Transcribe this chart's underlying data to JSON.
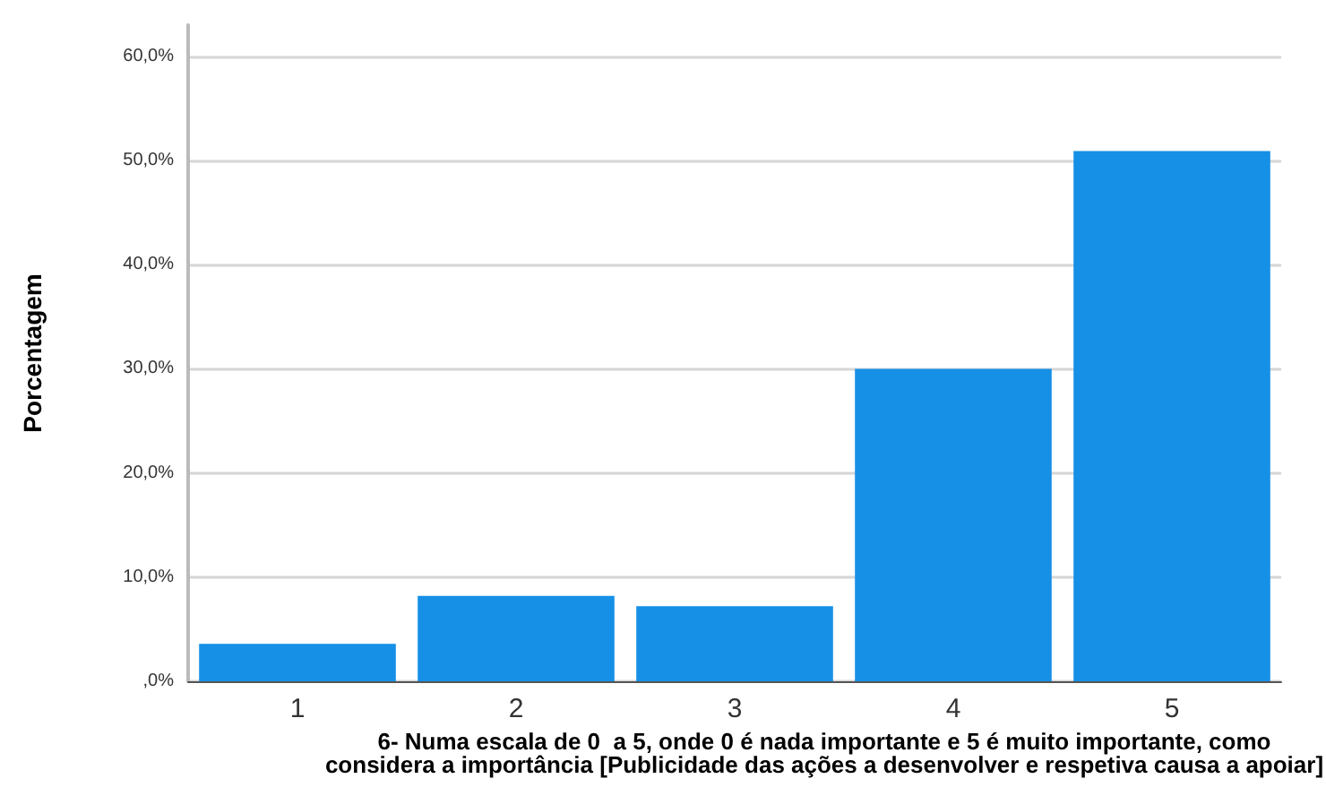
{
  "chart_data": {
    "type": "bar",
    "xlabel": "6- Numa escala de 0  a 5, onde 0 é nada importante e 5 é muito importante, como considera a importância [Publicidade das ações a desenvolver e respetiva causa a apoiar]",
    "ylabel": "Porcentagem",
    "categories": [
      "1",
      "2",
      "3",
      "4",
      "5"
    ],
    "values": [
      3.6,
      8.2,
      7.2,
      30.0,
      50.9
    ],
    "color": "#1690e6",
    "ylim": [
      0,
      63
    ],
    "yticks": [
      {
        "value": 0,
        "label": ",0%"
      },
      {
        "value": 10,
        "label": "10,0%"
      },
      {
        "value": 20,
        "label": "20,0%"
      },
      {
        "value": 30,
        "label": "30,0%"
      },
      {
        "value": 40,
        "label": "40,0%"
      },
      {
        "value": 50,
        "label": "50,0%"
      },
      {
        "value": 60,
        "label": "60,0%"
      }
    ],
    "grid": "y"
  }
}
